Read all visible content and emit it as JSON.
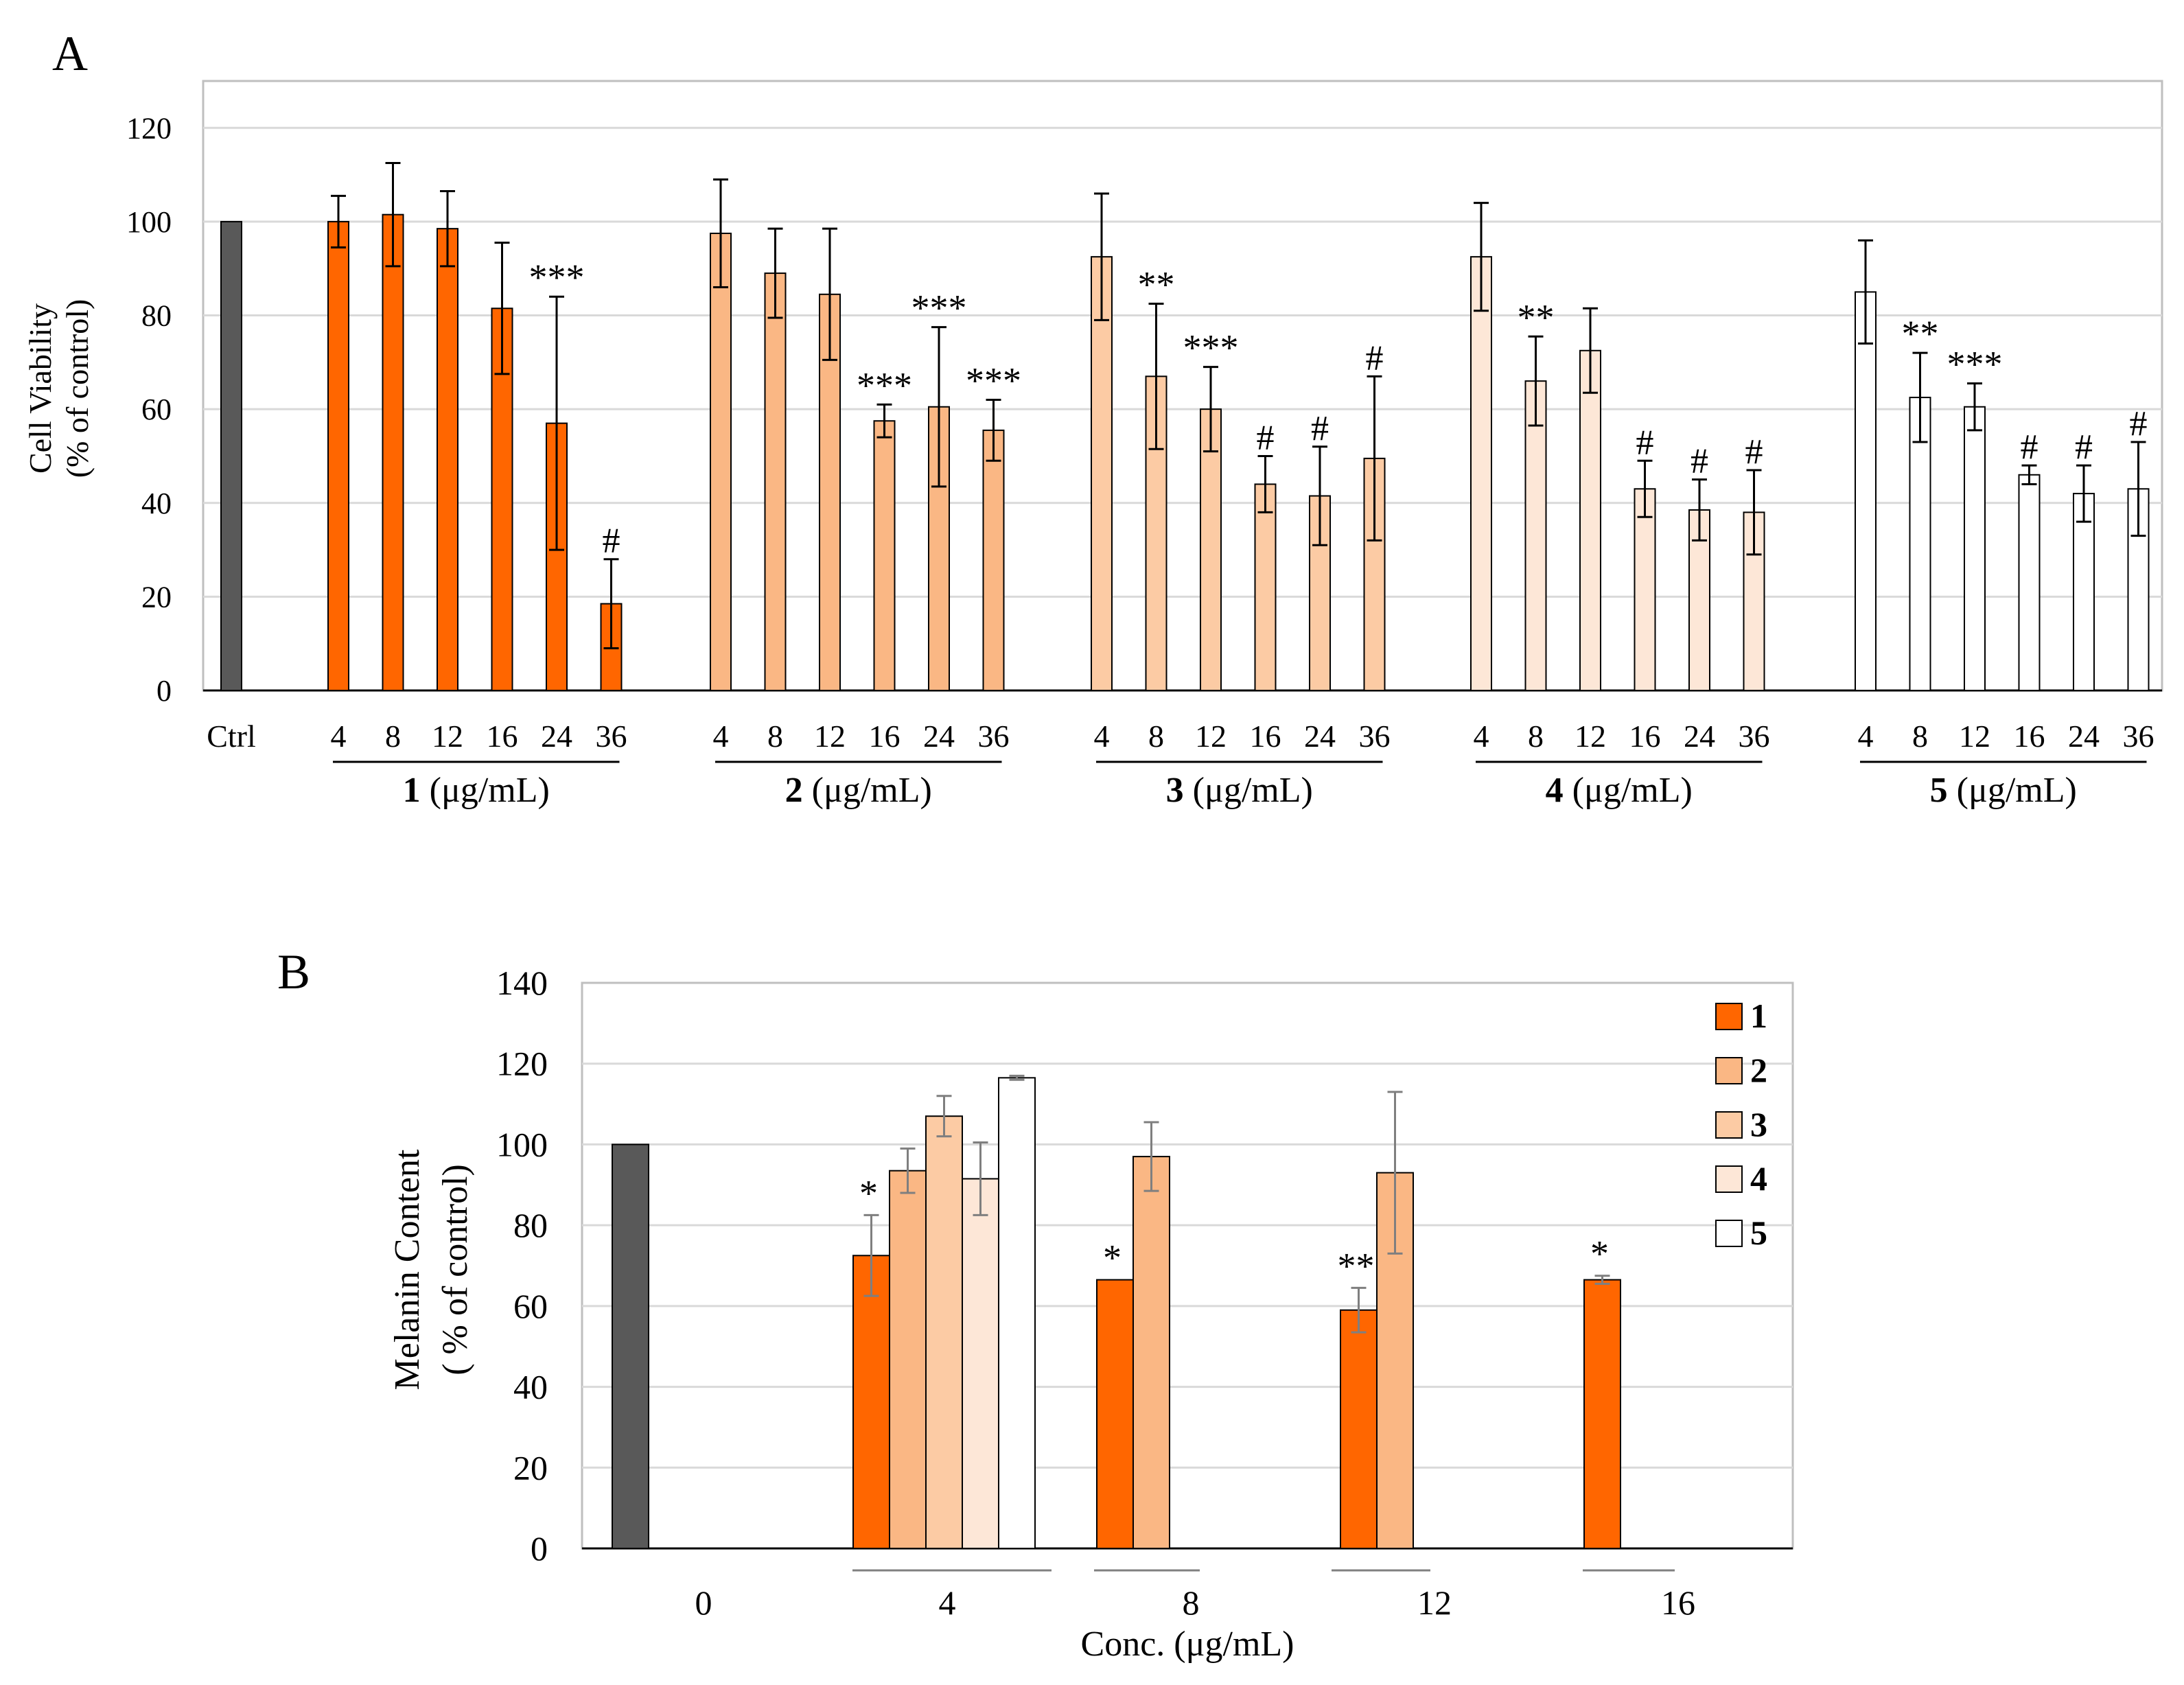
{
  "colors": {
    "ctrl": "#595959",
    "s1": "#FF6600",
    "s2": "#FAB784",
    "s3": "#FCCBA4",
    "s4": "#FDE7D7",
    "s5": "#FFFFFF",
    "axis": "#000000",
    "grid": "#D9D9D9",
    "hline": "#808080"
  },
  "chart_data": [
    {
      "panel_label": "A",
      "type": "bar",
      "ylabel_line1": "Cell Viability",
      "ylabel_line2": "(% of control)",
      "ylim": [
        0,
        130
      ],
      "yticks": [
        0,
        20,
        40,
        60,
        80,
        100,
        120
      ],
      "grid": true,
      "control": {
        "label": "Ctrl",
        "value": 100
      },
      "concentrations": [
        "4",
        "8",
        "12",
        "16",
        "24",
        "36"
      ],
      "group_unit": "(μg/mL)",
      "groups": [
        {
          "name": "1",
          "color_key": "s1",
          "values": [
            100,
            101.5,
            98.5,
            81.5,
            57,
            18.5
          ],
          "errors": [
            5.5,
            11,
            8,
            14,
            27,
            9.5
          ],
          "sig": [
            "",
            "",
            "",
            "",
            "***",
            "#"
          ]
        },
        {
          "name": "2",
          "color_key": "s2",
          "values": [
            97.5,
            89,
            84.5,
            57.5,
            60.5,
            55.5
          ],
          "errors": [
            11.5,
            9.5,
            14,
            3.5,
            17,
            6.5
          ],
          "sig": [
            "",
            "",
            "",
            "***",
            "***",
            "***"
          ]
        },
        {
          "name": "3",
          "color_key": "s3",
          "values": [
            92.5,
            67,
            60,
            44,
            41.5,
            49.5
          ],
          "errors": [
            13.5,
            15.5,
            9,
            6,
            10.5,
            17.5
          ],
          "sig": [
            "",
            "**",
            "***",
            "#",
            "#",
            "#"
          ]
        },
        {
          "name": "4",
          "color_key": "s4",
          "values": [
            92.5,
            66,
            72.5,
            43,
            38.5,
            38
          ],
          "errors": [
            11.5,
            9.5,
            9,
            6,
            6.5,
            9
          ],
          "sig": [
            "",
            "**",
            "",
            "#",
            "#",
            "#"
          ]
        },
        {
          "name": "5",
          "color_key": "s5",
          "values": [
            85,
            62.5,
            60.5,
            46,
            42,
            43
          ],
          "errors": [
            11,
            9.5,
            5,
            2,
            6,
            10
          ],
          "sig": [
            "",
            "**",
            "***",
            "#",
            "#",
            "#"
          ]
        }
      ]
    },
    {
      "panel_label": "B",
      "type": "bar",
      "ylabel_line1": "Melanin Content",
      "ylabel_line2": "( % of control)",
      "xlabel": "Conc. (μg/mL)",
      "ylim": [
        0,
        140
      ],
      "yticks": [
        0,
        20,
        40,
        60,
        80,
        100,
        120,
        140
      ],
      "grid": true,
      "legend_position": "top-right",
      "legend": [
        "1",
        "2",
        "3",
        "4",
        "5"
      ],
      "categories": [
        "0",
        "4",
        "8",
        "12",
        "16"
      ],
      "control": {
        "value": 100
      },
      "series": [
        {
          "name": "1",
          "color_key": "s1",
          "values": [
            null,
            72.5,
            66.5,
            59,
            66.5
          ],
          "errors": [
            null,
            10,
            0,
            5.5,
            1
          ],
          "sig": [
            "",
            "*",
            "*",
            "**",
            "*"
          ]
        },
        {
          "name": "2",
          "color_key": "s2",
          "values": [
            null,
            93.5,
            97,
            93,
            null
          ],
          "errors": [
            null,
            5.5,
            8.5,
            20,
            null
          ],
          "sig": [
            "",
            "",
            "",
            "",
            ""
          ]
        },
        {
          "name": "3",
          "color_key": "s3",
          "values": [
            null,
            107,
            null,
            null,
            null
          ],
          "errors": [
            null,
            5,
            null,
            null,
            null
          ],
          "sig": [
            "",
            "",
            "",
            "",
            ""
          ]
        },
        {
          "name": "4",
          "color_key": "s4",
          "values": [
            null,
            91.5,
            null,
            null,
            null
          ],
          "errors": [
            null,
            9,
            null,
            null,
            null
          ],
          "sig": [
            "",
            "",
            "",
            "",
            ""
          ]
        },
        {
          "name": "5",
          "color_key": "s5",
          "values": [
            null,
            116.5,
            null,
            null,
            null
          ],
          "errors": [
            null,
            0.5,
            null,
            null,
            null
          ],
          "sig": [
            "",
            "",
            "",
            "",
            ""
          ]
        }
      ]
    }
  ]
}
